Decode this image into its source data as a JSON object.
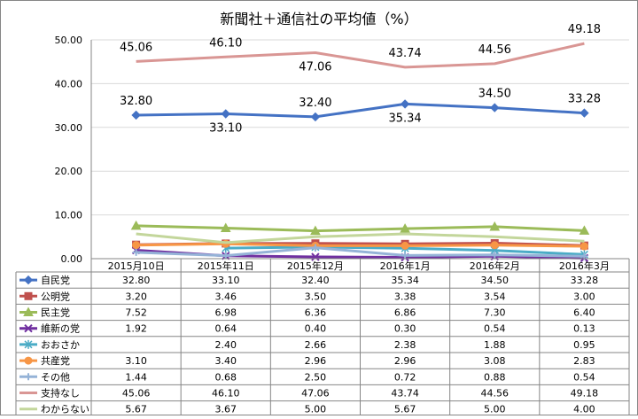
{
  "chart_data": {
    "type": "line",
    "title": "新聞社＋通信社の平均値（%）",
    "categories": [
      "2015月10日",
      "2015年11日",
      "2015年12月",
      "2016年1月",
      "2016年2月",
      "2016年3月"
    ],
    "y_ticks": [
      "0.00",
      "10.00",
      "20.00",
      "30.00",
      "40.00",
      "50.00"
    ],
    "ylim": [
      0,
      50
    ],
    "grid": true,
    "legend": "data-table",
    "series": [
      {
        "name": "自民党",
        "color": "#4472c4",
        "marker": "diamond",
        "labeled": true,
        "values": [
          32.8,
          33.1,
          32.4,
          35.34,
          34.5,
          33.28
        ],
        "display": [
          "32.80",
          "33.10",
          "32.40",
          "35.34",
          "34.50",
          "33.28"
        ]
      },
      {
        "name": "公明党",
        "color": "#c0504d",
        "marker": "square",
        "values": [
          3.2,
          3.46,
          3.5,
          3.38,
          3.54,
          3.0
        ],
        "display": [
          "3.20",
          "3.46",
          "3.50",
          "3.38",
          "3.54",
          "3.00"
        ]
      },
      {
        "name": "民主党",
        "color": "#9bbb59",
        "marker": "triangle",
        "values": [
          7.52,
          6.98,
          6.36,
          6.86,
          7.3,
          6.4
        ],
        "display": [
          "7.52",
          "6.98",
          "6.36",
          "6.86",
          "7.30",
          "6.40"
        ]
      },
      {
        "name": "維新の党",
        "color": "#7030a0",
        "marker": "x",
        "values": [
          1.92,
          0.64,
          0.4,
          0.3,
          0.54,
          0.13
        ],
        "display": [
          "1.92",
          "0.64",
          "0.40",
          "0.30",
          "0.54",
          "0.13"
        ]
      },
      {
        "name": "おおさか",
        "color": "#4bacc6",
        "marker": "star",
        "values": [
          null,
          2.4,
          2.66,
          2.38,
          1.88,
          0.95
        ],
        "display": [
          "",
          "2.40",
          "2.66",
          "2.38",
          "1.88",
          "0.95"
        ]
      },
      {
        "name": "共産党",
        "color": "#f79646",
        "marker": "circle",
        "values": [
          3.1,
          3.4,
          2.96,
          2.96,
          3.08,
          2.83
        ],
        "display": [
          "3.10",
          "3.40",
          "2.96",
          "2.96",
          "3.08",
          "2.83"
        ]
      },
      {
        "name": "その他",
        "color": "#95b3d7",
        "marker": "plus",
        "values": [
          1.44,
          0.68,
          2.5,
          0.72,
          0.88,
          0.54
        ],
        "display": [
          "1.44",
          "0.68",
          "2.50",
          "0.72",
          "0.88",
          "0.54"
        ]
      },
      {
        "name": "支持なし",
        "color": "#d99694",
        "marker": "none",
        "labeled": true,
        "values": [
          45.06,
          46.1,
          47.06,
          43.74,
          44.56,
          49.18
        ],
        "display": [
          "45.06",
          "46.10",
          "47.06",
          "43.74",
          "44.56",
          "49.18"
        ]
      },
      {
        "name": "わからない",
        "color": "#c3d69b",
        "marker": "none",
        "values": [
          5.67,
          3.67,
          5.0,
          5.67,
          5.0,
          4.0
        ],
        "display": [
          "5.67",
          "3.67",
          "5.00",
          "5.67",
          "5.00",
          "4.00"
        ]
      }
    ]
  }
}
